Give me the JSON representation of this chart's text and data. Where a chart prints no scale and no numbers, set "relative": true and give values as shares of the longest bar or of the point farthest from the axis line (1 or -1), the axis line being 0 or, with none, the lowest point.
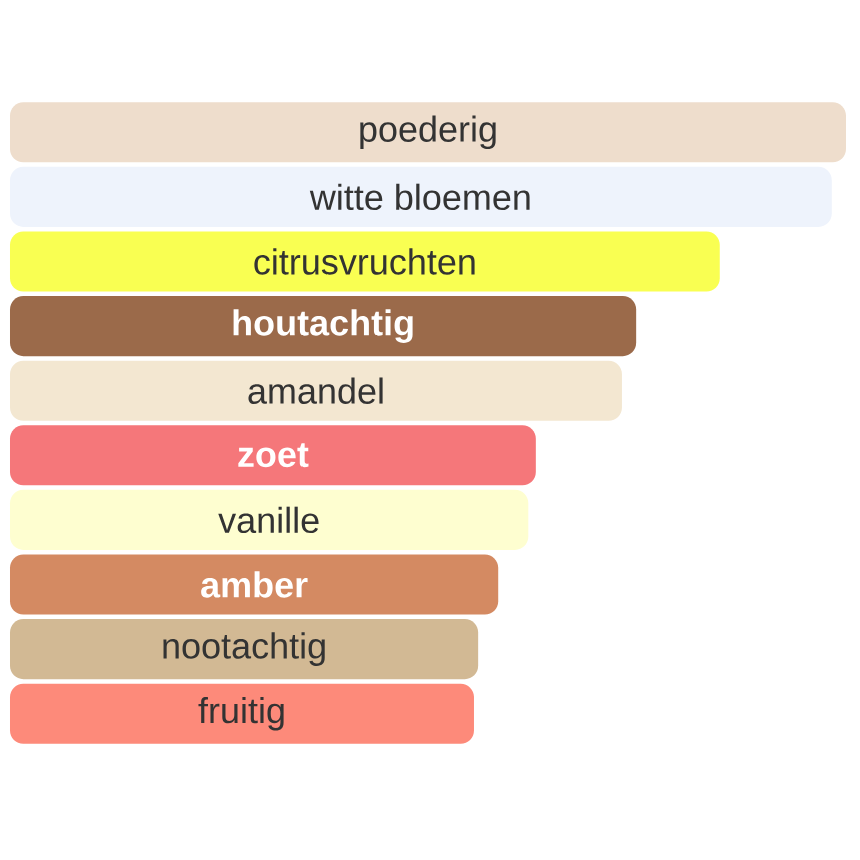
{
  "chart_data": {
    "type": "bar",
    "orientation": "horizontal",
    "relative": true,
    "categories": [
      "poederig",
      "witte bloemen",
      "citrusvruchten",
      "houtachtig",
      "amandel",
      "zoet",
      "vanille",
      "amber",
      "nootachtig",
      "fruitig"
    ],
    "values": [
      1,
      0.983,
      0.849,
      0.749,
      0.732,
      0.629,
      0.62,
      0.584,
      0.56,
      0.555
    ],
    "colors": [
      "#eeddcc",
      "#eef3fc",
      "#f9ff52",
      "#9b6a4a",
      "#f3e7d1",
      "#f5777a",
      "#fefed0",
      "#d48a62",
      "#d2b994",
      "#fd8a7a"
    ]
  }
}
